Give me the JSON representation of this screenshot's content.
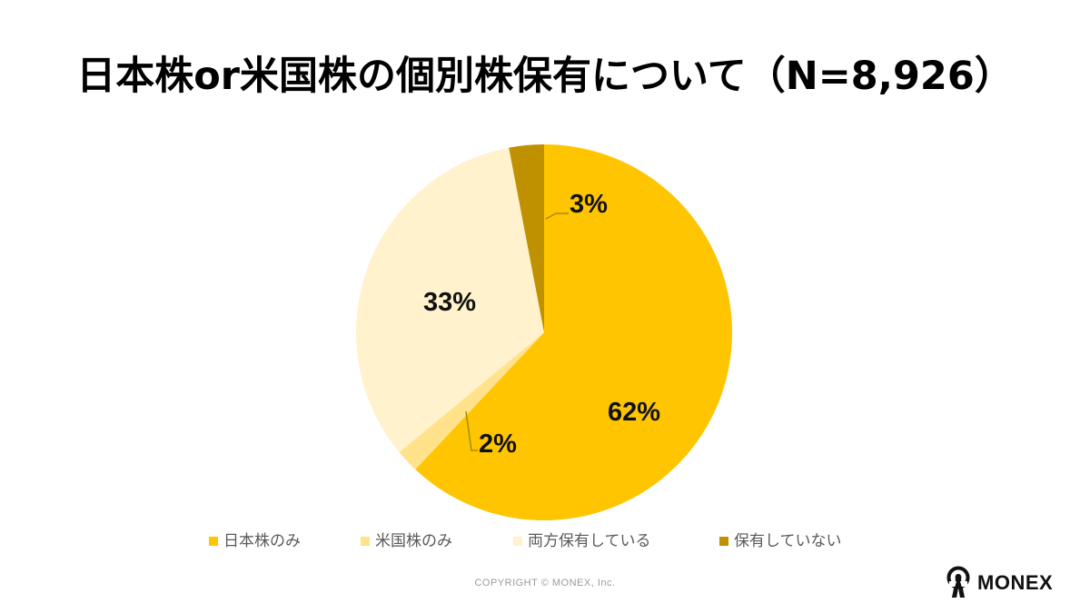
{
  "title": "日本株or米国株の個別株保有について（N=8,926）",
  "chart_data": {
    "type": "pie",
    "title": "日本株or米国株の個別株保有について（N=8,926）",
    "n": 8926,
    "start_angle_deg": 0,
    "direction": "clockwise",
    "categories": [
      "日本株のみ",
      "米国株のみ",
      "両方保有している",
      "保有していない"
    ],
    "values": [
      62,
      2,
      33,
      3
    ],
    "unit": "%",
    "colors": [
      "#FFC500",
      "#FFE28A",
      "#FFF2CC",
      "#BF9000"
    ],
    "data_labels": [
      "62%",
      "2%",
      "33%",
      "3%"
    ],
    "legend_position": "bottom"
  },
  "labels": {
    "japan_only": "62%",
    "us_only": "2%",
    "both": "33%",
    "none": "3%"
  },
  "legend": {
    "items": [
      {
        "label": "日本株のみ",
        "color": "#FFC500"
      },
      {
        "label": "米国株のみ",
        "color": "#FFE28A"
      },
      {
        "label": "両方保有している",
        "color": "#FFF2CC"
      },
      {
        "label": "保有していない",
        "color": "#BF9000"
      }
    ]
  },
  "footer": {
    "copyright": "COPYRIGHT © MONEX, Inc.",
    "logo_text": "MONEX"
  }
}
